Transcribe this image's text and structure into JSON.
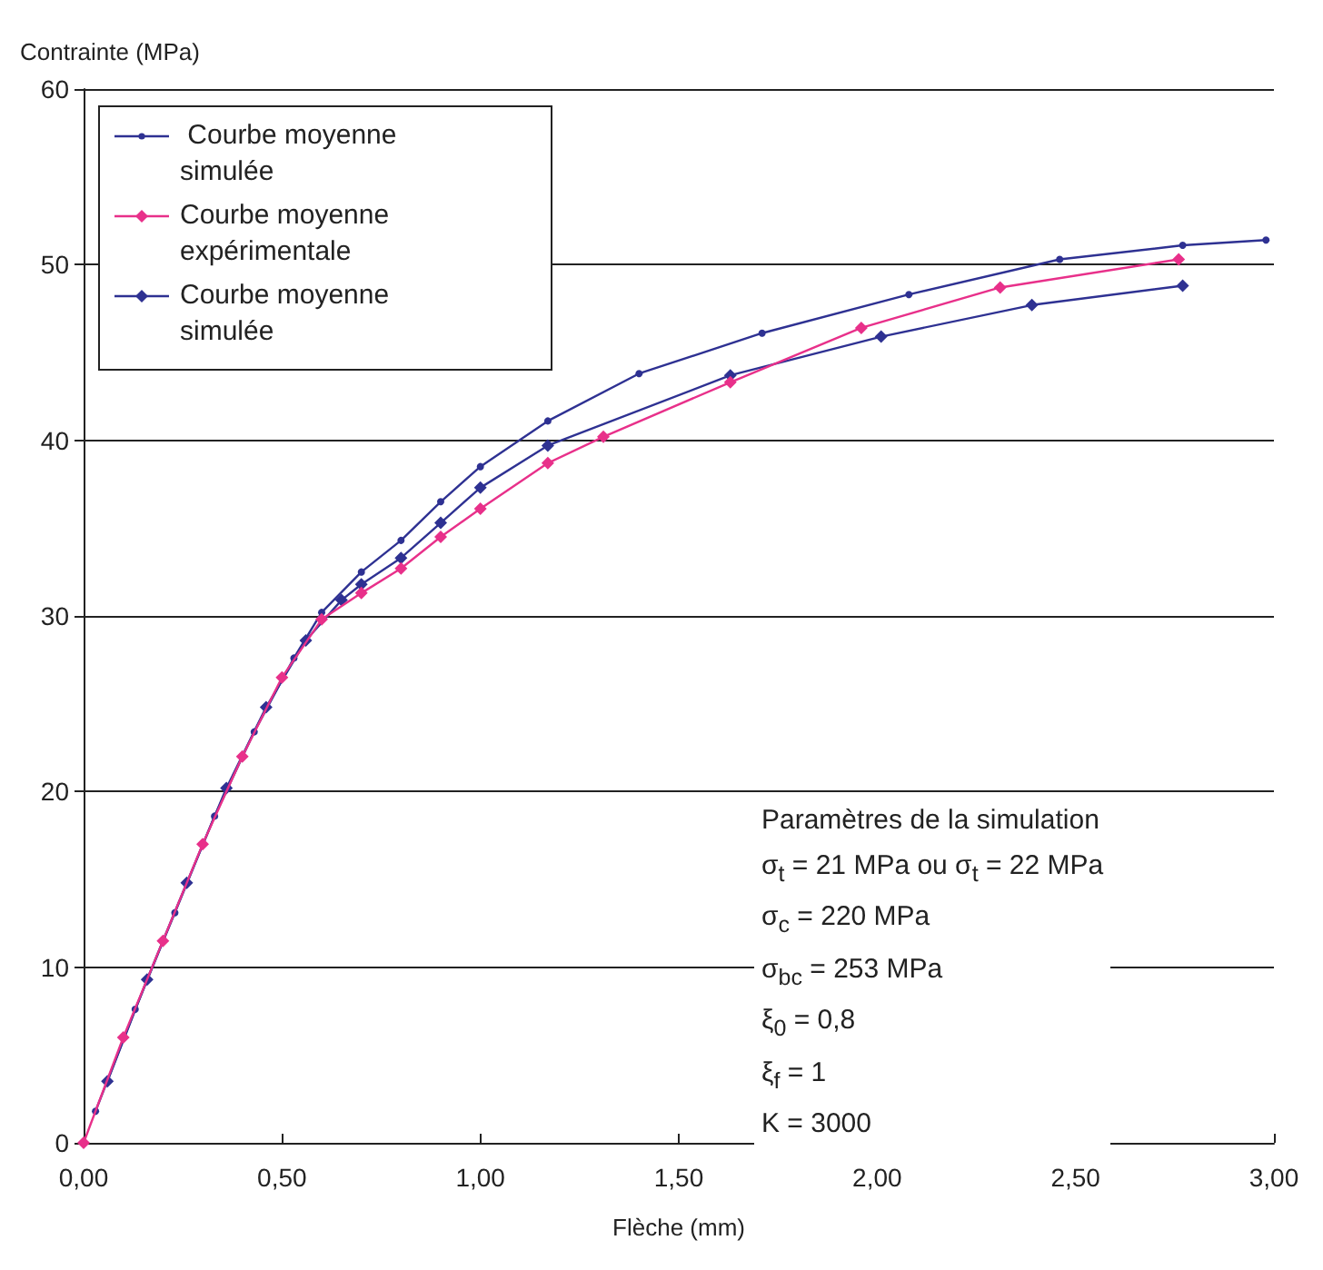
{
  "chart_data": {
    "type": "line",
    "xlabel": "Flèche (mm)",
    "ylabel": "Contrainte (MPa)",
    "xlim": [
      0,
      3
    ],
    "xticks": [
      {
        "value": 0,
        "label": "0,00"
      },
      {
        "value": 0.5,
        "label": "0,50"
      },
      {
        "value": 1,
        "label": "1,00"
      },
      {
        "value": 1.5,
        "label": "1,50"
      },
      {
        "value": 2,
        "label": "2,00"
      },
      {
        "value": 2.5,
        "label": "2,50"
      },
      {
        "value": 3,
        "label": "3,00"
      }
    ],
    "ylim": [
      0,
      60
    ],
    "yticks": [
      0,
      10,
      20,
      30,
      40,
      50,
      60
    ],
    "grid": "y",
    "legend": "top left",
    "line_style": "solid",
    "series": [
      {
        "name": " Courbe moyenne simulée",
        "color": "#2e3192",
        "marker": "circle",
        "x": [
          0.03,
          0.13,
          0.23,
          0.33,
          0.43,
          0.53,
          0.6,
          0.7,
          0.8,
          0.9,
          1.0,
          1.17,
          1.4,
          1.71,
          2.08,
          2.46,
          2.77,
          2.98
        ],
        "values": [
          1.8,
          7.6,
          13.1,
          18.6,
          23.4,
          27.6,
          30.2,
          32.5,
          34.3,
          36.5,
          38.5,
          41.1,
          43.8,
          46.1,
          48.3,
          50.3,
          51.1,
          51.4
        ]
      },
      {
        "name": "Courbe moyenne expérimentale",
        "color": "#e8308a",
        "marker": "diamond",
        "x": [
          0,
          0.1,
          0.2,
          0.3,
          0.4,
          0.5,
          0.6,
          0.7,
          0.8,
          0.9,
          1.0,
          1.17,
          1.31,
          1.63,
          1.96,
          2.31,
          2.76
        ],
        "values": [
          0,
          6,
          11.5,
          17,
          22,
          26.5,
          29.8,
          31.3,
          32.7,
          34.5,
          36.1,
          38.7,
          40.2,
          43.3,
          46.4,
          48.7,
          50.3
        ]
      },
      {
        "name": "Courbe moyenne simulée",
        "color": "#2e3192",
        "marker": "diamond",
        "x": [
          0.06,
          0.16,
          0.26,
          0.36,
          0.46,
          0.56,
          0.65,
          0.7,
          0.8,
          0.9,
          1.0,
          1.17,
          1.63,
          2.01,
          2.39,
          2.77
        ],
        "values": [
          3.5,
          9.3,
          14.8,
          20.2,
          24.8,
          28.6,
          30.9,
          31.8,
          33.3,
          35.3,
          37.3,
          39.7,
          43.7,
          45.9,
          47.7,
          48.8
        ]
      }
    ],
    "annotations": [
      "Paramètres de la simulation",
      "σ$_{t}$ = 21 MPa ou  σ$_{t}$ = 22 MPa",
      "σ$_{c}$ = 220 MPa",
      "σ$_{bc}$ = 253 MPa",
      "ξ$_{0}$ = 0,8",
      "ξ$_{f}$ = 1",
      "K = 3000"
    ]
  }
}
